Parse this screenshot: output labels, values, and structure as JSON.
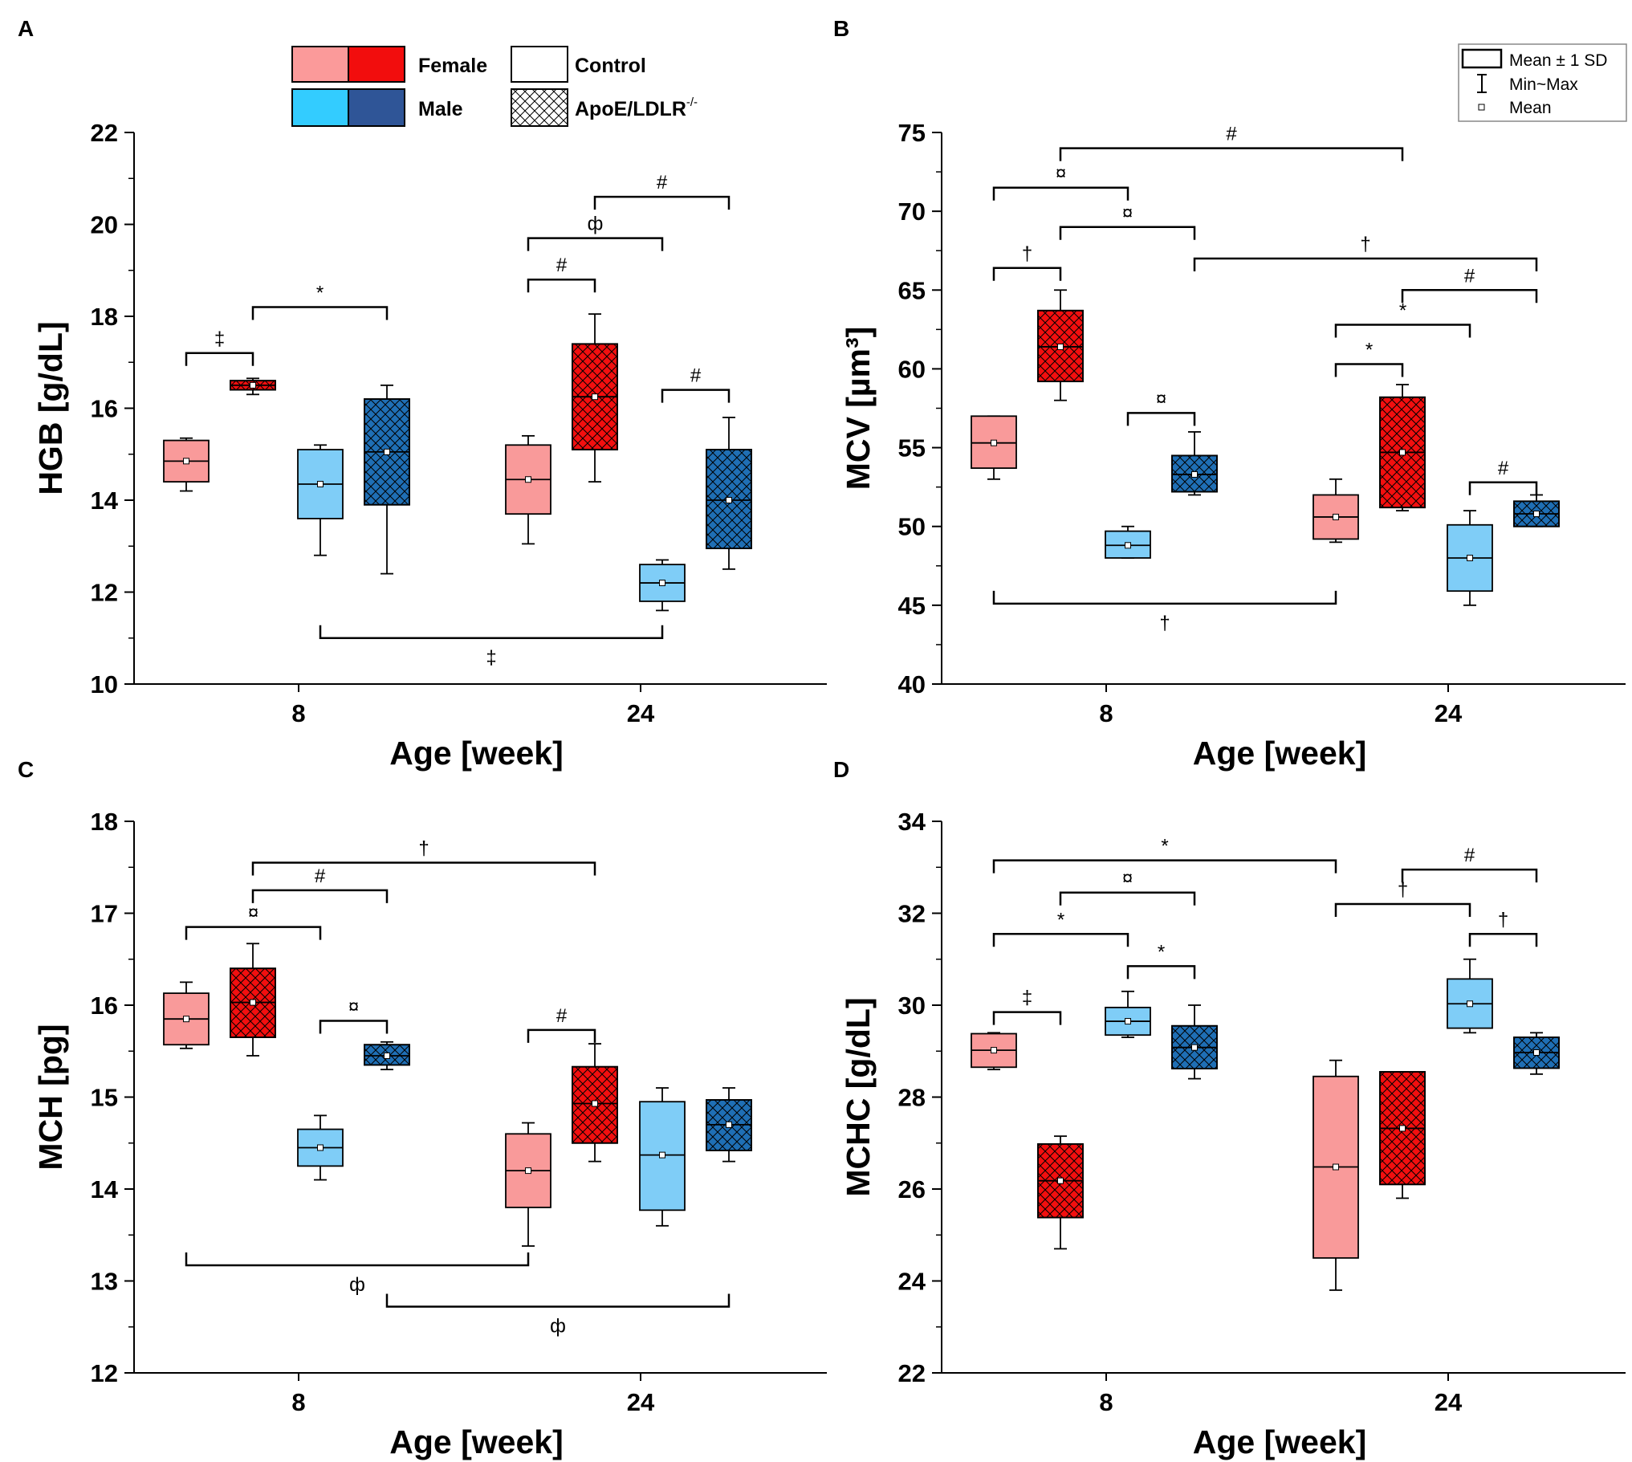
{
  "figure": {
    "legend_group": {
      "female": "Female",
      "male": "Male",
      "control": "Control",
      "apoe": "ApoE/LDLR",
      "apoe_sup": "-/-"
    },
    "legend_stats": {
      "box": "Mean ± 1 SD",
      "whisker": "Min~Max",
      "mean": "Mean"
    },
    "colors": {
      "female_control": "#f99a9a",
      "female_apoe": "#f20f0f",
      "male_control": "#7fcdf7",
      "male_apoe": "#1f6fb5",
      "legend_female_control": "#fb9a9a",
      "legend_female_apoe": "#f20d0d",
      "legend_male_control": "#33ccff",
      "legend_male_apoe": "#2f5597"
    }
  },
  "chart_data": [
    {
      "panel": "A",
      "type": "box",
      "ylabel": "HGB [g/dL]",
      "xlabel": "Age [week]",
      "categories": [
        "8",
        "24"
      ],
      "ylim": [
        10,
        22
      ],
      "yticks": [
        10,
        12,
        14,
        16,
        18,
        20,
        22
      ],
      "groups": [
        {
          "name": "Female Control",
          "age": "8",
          "min": 14.2,
          "q1": 14.4,
          "mean": 14.85,
          "q3": 15.3,
          "max": 15.35
        },
        {
          "name": "Female ApoE/LDLR-/-",
          "age": "8",
          "min": 16.3,
          "q1": 16.4,
          "mean": 16.5,
          "q3": 16.6,
          "max": 16.65
        },
        {
          "name": "Male Control",
          "age": "8",
          "min": 12.8,
          "q1": 13.6,
          "mean": 14.35,
          "q3": 15.1,
          "max": 15.2
        },
        {
          "name": "Male ApoE/LDLR-/-",
          "age": "8",
          "min": 12.4,
          "q1": 13.9,
          "mean": 15.05,
          "q3": 16.2,
          "max": 16.5
        },
        {
          "name": "Female Control",
          "age": "24",
          "min": 13.05,
          "q1": 13.7,
          "mean": 14.45,
          "q3": 15.2,
          "max": 15.4
        },
        {
          "name": "Female ApoE/LDLR-/-",
          "age": "24",
          "min": 14.4,
          "q1": 15.1,
          "mean": 16.25,
          "q3": 17.4,
          "max": 18.05
        },
        {
          "name": "Male Control",
          "age": "24",
          "min": 11.6,
          "q1": 11.8,
          "mean": 12.2,
          "q3": 12.6,
          "max": 12.7
        },
        {
          "name": "Male ApoE/LDLR-/-",
          "age": "24",
          "min": 12.5,
          "q1": 12.95,
          "mean": 14.0,
          "q3": 15.1,
          "max": 15.8
        }
      ],
      "brackets": [
        {
          "from": 0,
          "to": 1,
          "y": 17.2,
          "label": "‡",
          "dir": "down"
        },
        {
          "from": 1,
          "to": 3,
          "y": 18.2,
          "label": "*",
          "dir": "down"
        },
        {
          "from": 4,
          "to": 5,
          "y": 18.8,
          "label": "#",
          "dir": "down"
        },
        {
          "from": 4,
          "to": 6,
          "y": 19.7,
          "label": "ф",
          "dir": "down"
        },
        {
          "from": 5,
          "to": 7,
          "y": 20.6,
          "label": "#",
          "dir": "down"
        },
        {
          "from": 6,
          "to": 7,
          "y": 16.4,
          "label": "#",
          "dir": "down"
        },
        {
          "from": 2,
          "to": 6,
          "y": 11.0,
          "label": "‡",
          "dir": "up"
        }
      ]
    },
    {
      "panel": "B",
      "type": "box",
      "ylabel": "MCV [µm³]",
      "xlabel": "Age [week]",
      "categories": [
        "8",
        "24"
      ],
      "ylim": [
        40,
        75
      ],
      "yticks": [
        40,
        45,
        50,
        55,
        60,
        65,
        70,
        75
      ],
      "groups": [
        {
          "name": "Female Control",
          "age": "8",
          "min": 53.0,
          "q1": 53.7,
          "mean": 55.3,
          "q3": 57.0,
          "max": 57.0
        },
        {
          "name": "Female ApoE/LDLR-/-",
          "age": "8",
          "min": 58.0,
          "q1": 59.2,
          "mean": 61.4,
          "q3": 63.7,
          "max": 65.0
        },
        {
          "name": "Male Control",
          "age": "8",
          "min": 48.0,
          "q1": 48.0,
          "mean": 48.8,
          "q3": 49.7,
          "max": 50.0
        },
        {
          "name": "Male ApoE/LDLR-/-",
          "age": "8",
          "min": 52.0,
          "q1": 52.2,
          "mean": 53.3,
          "q3": 54.5,
          "max": 56.0
        },
        {
          "name": "Female Control",
          "age": "24",
          "min": 49.0,
          "q1": 49.2,
          "mean": 50.6,
          "q3": 52.0,
          "max": 53.0
        },
        {
          "name": "Female ApoE/LDLR-/-",
          "age": "24",
          "min": 51.0,
          "q1": 51.2,
          "mean": 54.7,
          "q3": 58.2,
          "max": 59.0
        },
        {
          "name": "Male Control",
          "age": "24",
          "min": 45.0,
          "q1": 45.9,
          "mean": 48.0,
          "q3": 50.1,
          "max": 51.0
        },
        {
          "name": "Male ApoE/LDLR-/-",
          "age": "24",
          "min": 50.0,
          "q1": 50.0,
          "mean": 50.8,
          "q3": 51.6,
          "max": 52.0
        }
      ],
      "brackets": [
        {
          "from": 1,
          "to": 5,
          "y": 74.0,
          "label": "#",
          "dir": "down"
        },
        {
          "from": 0,
          "to": 2,
          "y": 71.5,
          "label": "¤",
          "dir": "down"
        },
        {
          "from": 1,
          "to": 3,
          "y": 69.0,
          "label": "¤",
          "dir": "down"
        },
        {
          "from": 0,
          "to": 1,
          "y": 66.4,
          "label": "†",
          "dir": "down"
        },
        {
          "from": 3,
          "to": 7,
          "y": 67.0,
          "label": "†",
          "dir": "down"
        },
        {
          "from": 5,
          "to": 7,
          "y": 65.0,
          "label": "#",
          "dir": "down"
        },
        {
          "from": 4,
          "to": 6,
          "y": 62.8,
          "label": "*",
          "dir": "down"
        },
        {
          "from": 4,
          "to": 5,
          "y": 60.3,
          "label": "*",
          "dir": "down"
        },
        {
          "from": 2,
          "to": 3,
          "y": 57.2,
          "label": "¤",
          "dir": "down"
        },
        {
          "from": 6,
          "to": 7,
          "y": 52.8,
          "label": "#",
          "dir": "down"
        },
        {
          "from": 0,
          "to": 4,
          "y": 45.1,
          "label": "†",
          "dir": "up"
        }
      ]
    },
    {
      "panel": "C",
      "type": "box",
      "ylabel": "MCH [pg]",
      "xlabel": "Age [week]",
      "categories": [
        "8",
        "24"
      ],
      "ylim": [
        12,
        18
      ],
      "yticks": [
        12,
        13,
        14,
        15,
        16,
        17,
        18
      ],
      "groups": [
        {
          "name": "Female Control",
          "age": "8",
          "min": 15.53,
          "q1": 15.57,
          "mean": 15.85,
          "q3": 16.13,
          "max": 16.25
        },
        {
          "name": "Female ApoE/LDLR-/-",
          "age": "8",
          "min": 15.45,
          "q1": 15.65,
          "mean": 16.03,
          "q3": 16.4,
          "max": 16.67
        },
        {
          "name": "Male Control",
          "age": "8",
          "min": 14.1,
          "q1": 14.25,
          "mean": 14.45,
          "q3": 14.65,
          "max": 14.8
        },
        {
          "name": "Male ApoE/LDLR-/-",
          "age": "8",
          "min": 15.3,
          "q1": 15.35,
          "mean": 15.45,
          "q3": 15.57,
          "max": 15.6
        },
        {
          "name": "Female Control",
          "age": "24",
          "min": 13.38,
          "q1": 13.8,
          "mean": 14.2,
          "q3": 14.6,
          "max": 14.72
        },
        {
          "name": "Female ApoE/LDLR-/-",
          "age": "24",
          "min": 14.3,
          "q1": 14.5,
          "mean": 14.93,
          "q3": 15.33,
          "max": 15.58
        },
        {
          "name": "Male Control",
          "age": "24",
          "min": 13.6,
          "q1": 13.77,
          "mean": 14.37,
          "q3": 14.95,
          "max": 15.1
        },
        {
          "name": "Male ApoE/LDLR-/-",
          "age": "24",
          "min": 14.3,
          "q1": 14.42,
          "mean": 14.7,
          "q3": 14.97,
          "max": 15.1
        }
      ],
      "brackets": [
        {
          "from": 1,
          "to": 5,
          "y": 17.55,
          "label": "†",
          "dir": "down"
        },
        {
          "from": 1,
          "to": 3,
          "y": 17.25,
          "label": "#",
          "dir": "down"
        },
        {
          "from": 0,
          "to": 2,
          "y": 16.85,
          "label": "¤",
          "dir": "down"
        },
        {
          "from": 2,
          "to": 3,
          "y": 15.83,
          "label": "¤",
          "dir": "down"
        },
        {
          "from": 4,
          "to": 5,
          "y": 15.73,
          "label": "#",
          "dir": "down"
        },
        {
          "from": 0,
          "to": 4,
          "y": 13.17,
          "label": "ф",
          "dir": "up"
        },
        {
          "from": 3,
          "to": 7,
          "y": 12.72,
          "label": "ф",
          "dir": "up"
        }
      ]
    },
    {
      "panel": "D",
      "type": "box",
      "ylabel": "MCHC [g/dL]",
      "xlabel": "Age [week]",
      "categories": [
        "8",
        "24"
      ],
      "ylim": [
        22,
        34
      ],
      "yticks": [
        22,
        24,
        26,
        28,
        30,
        32,
        34
      ],
      "groups": [
        {
          "name": "Female Control",
          "age": "8",
          "min": 28.6,
          "q1": 28.65,
          "mean": 29.02,
          "q3": 29.38,
          "max": 29.4
        },
        {
          "name": "Female ApoE/LDLR-/-",
          "age": "8",
          "min": 24.7,
          "q1": 25.38,
          "mean": 26.18,
          "q3": 26.98,
          "max": 27.15
        },
        {
          "name": "Male Control",
          "age": "8",
          "min": 29.3,
          "q1": 29.35,
          "mean": 29.65,
          "q3": 29.95,
          "max": 30.3
        },
        {
          "name": "Male ApoE/LDLR-/-",
          "age": "8",
          "min": 28.4,
          "q1": 28.62,
          "mean": 29.08,
          "q3": 29.55,
          "max": 30.0
        },
        {
          "name": "Female Control",
          "age": "24",
          "min": 23.8,
          "q1": 24.5,
          "mean": 26.48,
          "q3": 28.45,
          "max": 28.8
        },
        {
          "name": "Female ApoE/LDLR-/-",
          "age": "24",
          "min": 25.8,
          "q1": 26.1,
          "mean": 27.32,
          "q3": 28.55,
          "max": 28.55
        },
        {
          "name": "Male Control",
          "age": "24",
          "min": 29.4,
          "q1": 29.5,
          "mean": 30.03,
          "q3": 30.57,
          "max": 31.0
        },
        {
          "name": "Male ApoE/LDLR-/-",
          "age": "24",
          "min": 28.5,
          "q1": 28.63,
          "mean": 28.97,
          "q3": 29.3,
          "max": 29.4
        }
      ],
      "brackets": [
        {
          "from": 0,
          "to": 4,
          "y": 33.15,
          "label": "*",
          "dir": "down"
        },
        {
          "from": 5,
          "to": 7,
          "y": 32.95,
          "label": "#",
          "dir": "down"
        },
        {
          "from": 1,
          "to": 3,
          "y": 32.45,
          "label": "¤",
          "dir": "down"
        },
        {
          "from": 4,
          "to": 6,
          "y": 32.2,
          "label": "†",
          "dir": "down"
        },
        {
          "from": 0,
          "to": 2,
          "y": 31.55,
          "label": "*",
          "dir": "down"
        },
        {
          "from": 6,
          "to": 7,
          "y": 31.55,
          "label": "†",
          "dir": "down"
        },
        {
          "from": 2,
          "to": 3,
          "y": 30.85,
          "label": "*",
          "dir": "down"
        },
        {
          "from": 0,
          "to": 1,
          "y": 29.85,
          "label": "‡",
          "dir": "down"
        }
      ]
    }
  ]
}
